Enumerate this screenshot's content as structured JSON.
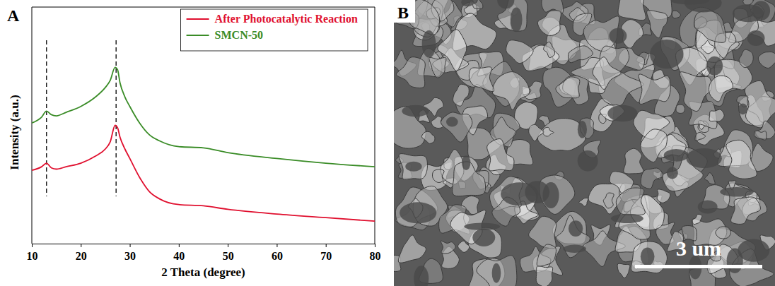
{
  "chart_data": {
    "type": "line",
    "panel_label": "A",
    "x_label": "2 Theta (degree)",
    "y_label": "Intensity (a.u.)",
    "x": [
      10,
      12,
      13,
      14,
      15,
      17,
      20,
      23,
      25,
      26,
      27,
      27.5,
      28,
      29,
      30,
      32,
      34,
      36,
      40,
      45,
      50,
      60,
      70,
      80
    ],
    "series": [
      {
        "name": "After Photocatalytic Reaction",
        "color": "#e0102f",
        "values": [
          31,
          32.5,
          34,
          32,
          31.5,
          32.5,
          34,
          37,
          40,
          43,
          50,
          49,
          45,
          40,
          36,
          28,
          22,
          19,
          16.5,
          16,
          14.5,
          12.5,
          11,
          9.5
        ]
      },
      {
        "name": "SMCN-50",
        "color": "#3a8c27",
        "values": [
          51,
          53.5,
          56,
          54.5,
          54,
          55.5,
          58,
          62,
          66,
          69,
          74.5,
          73.5,
          68,
          62,
          58,
          51,
          46,
          43.5,
          41,
          40.5,
          38.5,
          36,
          34,
          32.5
        ]
      }
    ],
    "reference_lines": [
      13,
      27.2
    ],
    "xlim": [
      10,
      80
    ],
    "xticks": [
      10,
      20,
      30,
      40,
      50,
      60,
      70,
      80
    ],
    "ylim": [
      0,
      100
    ],
    "tick_labels": "x",
    "grid": false,
    "legend": "upper right"
  },
  "image_panel": {
    "panel_label": "B",
    "scale_bar_label": "3 um"
  }
}
